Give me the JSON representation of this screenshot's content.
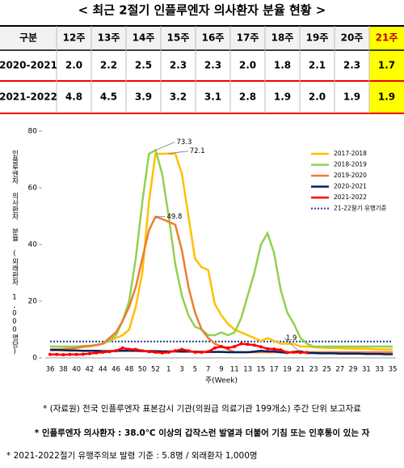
{
  "title": "< 최근 2절기 인플루엔자 의사환자 분율 현황 >",
  "table": {
    "header": [
      "구분",
      "12주",
      "13주",
      "14주",
      "15주",
      "16주",
      "17주",
      "18주",
      "19주",
      "20주",
      "21주"
    ],
    "rows": [
      [
        "2020-2021",
        "2.0",
        "2.2",
        "2.5",
        "2.3",
        "2.3",
        "2.0",
        "1.8",
        "2.1",
        "2.3",
        "1.7"
      ],
      [
        "2021-2022",
        "4.8",
        "4.5",
        "3.9",
        "3.2",
        "3.1",
        "2.8",
        "1.9",
        "2.0",
        "1.9",
        "1.9"
      ]
    ]
  },
  "chart_data": {
    "type": "line",
    "y_label": "인플루엔자 의사환자 분율 (외래환자 1,000명당)",
    "x_label": "주(Week)",
    "categories": [
      "36",
      null,
      "38",
      null,
      "40",
      null,
      "42",
      null,
      "44",
      null,
      "46",
      null,
      "48",
      null,
      "50",
      null,
      "52",
      null,
      "1",
      null,
      "3",
      null,
      "5",
      null,
      "7",
      null,
      "9",
      null,
      "11",
      null,
      "13",
      null,
      "15",
      null,
      "17",
      null,
      "19",
      null,
      "21",
      null,
      "23",
      null,
      "25",
      null,
      "27",
      null,
      "29",
      null,
      "31",
      null,
      "33",
      null,
      "35"
    ],
    "ylim": [
      0,
      80
    ],
    "yticks": [
      0,
      20,
      40,
      60,
      80
    ],
    "series": [
      {
        "name": "2017-2018",
        "color": "#ffc000",
        "values": [
          3,
          3,
          3.2,
          3.5,
          3.6,
          3.8,
          4,
          4.5,
          5,
          6,
          7,
          8,
          10,
          18,
          30,
          55,
          72,
          72,
          72.1,
          72,
          65,
          50,
          35,
          32,
          31,
          19,
          15,
          12,
          10,
          9,
          8,
          7,
          6,
          7,
          6,
          5,
          5,
          5,
          4,
          4,
          3.8,
          3.6,
          3.5,
          3.5,
          3.4,
          3.3,
          3.3,
          3.2,
          3.2,
          3.1,
          3,
          3,
          3
        ]
      },
      {
        "name": "2018-2019",
        "color": "#92d050",
        "values": [
          4,
          4,
          4,
          4,
          4,
          4.2,
          4.3,
          4.5,
          5,
          6,
          8,
          13,
          20,
          35,
          55,
          72,
          73.3,
          65,
          50,
          33,
          22,
          15,
          11,
          10,
          8,
          8,
          9,
          8,
          9,
          14,
          22,
          30,
          40,
          44,
          37,
          24,
          16,
          12,
          7,
          5,
          4,
          4,
          4,
          4,
          4,
          4,
          4,
          4,
          4,
          4,
          4,
          4,
          4
        ]
      },
      {
        "name": "2019-2020",
        "color": "#ed7d31",
        "values": [
          3,
          3,
          3,
          3.2,
          3.5,
          4,
          4.2,
          4.5,
          5,
          7,
          9,
          13,
          18,
          25,
          35,
          45,
          49.8,
          49,
          48,
          47,
          38,
          25,
          16,
          10,
          7,
          5,
          4,
          3,
          2,
          2,
          2,
          2,
          2,
          2,
          2,
          2,
          2,
          2,
          2,
          2,
          2,
          2,
          2,
          2,
          2,
          2,
          2,
          2,
          2,
          2,
          2,
          2,
          2
        ]
      },
      {
        "name": "2020-2021",
        "color": "#002060",
        "values": [
          2.8,
          2.8,
          2.7,
          2.6,
          2.6,
          2.5,
          2.5,
          2.5,
          2.4,
          2.4,
          2.5,
          2.5,
          2.5,
          2.5,
          2.4,
          2.4,
          2.4,
          2.3,
          2.3,
          2.3,
          2.2,
          2.2,
          2.2,
          2.1,
          2.1,
          2.1,
          2.1,
          2.0,
          2.0,
          2.0,
          2.0,
          2.2,
          2.5,
          2.3,
          2.3,
          2.0,
          1.8,
          2.1,
          2.3,
          1.7,
          1.7,
          1.6,
          1.6,
          1.6,
          1.5,
          1.5,
          1.5,
          1.5,
          1.4,
          1.4,
          1.4,
          1.3,
          1.3
        ]
      },
      {
        "name": "2021-2022",
        "color": "#ff0000",
        "markers": true,
        "values": [
          1.2,
          1.2,
          1.1,
          1.2,
          1.2,
          1.3,
          1.5,
          1.8,
          2,
          2.2,
          2.5,
          3.5,
          3,
          3,
          2.5,
          2.2,
          2,
          1.8,
          2,
          2.5,
          3,
          2.5,
          2,
          2,
          2.2,
          3.5,
          4,
          3.5,
          4,
          5,
          4.8,
          4.5,
          3.9,
          3.2,
          3.1,
          2.8,
          1.9,
          2.0,
          1.9,
          1.9,
          null,
          null,
          null,
          null,
          null,
          null,
          null,
          null,
          null,
          null,
          null,
          null,
          null
        ]
      }
    ],
    "threshold": {
      "name": "21-22절기 유행기준",
      "value": 5.8,
      "color": "#1f3f8f"
    },
    "annotations": [
      {
        "series": "2018-2019",
        "x": "52",
        "value": 73.3,
        "label": "73.3"
      },
      {
        "series": "2017-2018",
        "x": "1",
        "value": 72.1,
        "label": "72.1"
      },
      {
        "series": "2019-2020",
        "x": "52",
        "value": 49.8,
        "label": "49.8"
      },
      {
        "series": "2021-2022",
        "x": "21",
        "value": 1.9,
        "label": "1.9"
      }
    ]
  },
  "notes": [
    "* (자료원) 전국 인플루엔자 표본감시 기관(의원급 의료기관 199개소) 주간 단위 보고자료",
    "* 인플루엔자 의사환자 : 38.0℃ 이상의 갑작스런 발열과 더불어 기침 또는 인후통이 있는 자",
    "* 2021-2022절기 유행주의보 발령 기준 : 5.8명 / 외래환자 1,000명"
  ]
}
